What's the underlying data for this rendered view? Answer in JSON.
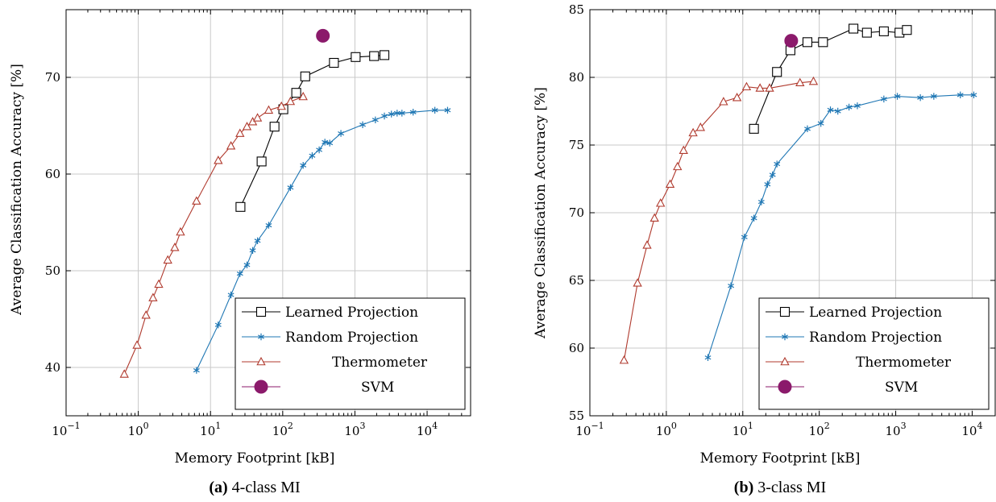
{
  "chart_data": [
    {
      "type": "line",
      "caption_tag": "(a)",
      "caption_text": "4-class MI",
      "xlabel": "Memory Footprint [kB]",
      "ylabel": "Average Classification Accuracy [%]",
      "xscale": "log",
      "xlim": [
        0.1,
        40000
      ],
      "ylim": [
        35,
        77
      ],
      "xticks": [
        0.1,
        1,
        10,
        100,
        1000,
        10000
      ],
      "xtick_labels": [
        [
          "10",
          "−1"
        ],
        [
          "10",
          "0"
        ],
        [
          "10",
          "1"
        ],
        [
          "10",
          "2"
        ],
        [
          "10",
          "3"
        ],
        [
          "10",
          "4"
        ]
      ],
      "yticks": [
        40,
        50,
        60,
        70
      ],
      "ytick_labels": [
        "40",
        "50",
        "60",
        "70"
      ],
      "grid": true,
      "legend_position": "bottom-right",
      "series": [
        {
          "name": "Learned Projection",
          "color": "#000000",
          "marker": "square",
          "x": [
            26,
            51,
            77,
            102,
            154,
            205,
            512,
            1024,
            1843,
            2560
          ],
          "y": [
            56.6,
            61.3,
            64.9,
            66.7,
            68.4,
            70.1,
            71.5,
            72.1,
            72.2,
            72.3
          ]
        },
        {
          "name": "Random Projection",
          "color": "#1f77b4",
          "marker": "star",
          "x": [
            6.4,
            12.8,
            19.2,
            25.6,
            32,
            38.4,
            44.8,
            64,
            128,
            192,
            256,
            320,
            384,
            448,
            640,
            1280,
            1920,
            2560,
            3200,
            3840,
            4480,
            6400,
            12800,
            19200
          ],
          "y": [
            39.7,
            44.4,
            47.5,
            49.7,
            50.6,
            52.1,
            53.1,
            54.7,
            58.6,
            60.9,
            61.9,
            62.5,
            63.3,
            63.2,
            64.2,
            65.1,
            65.6,
            66.0,
            66.2,
            66.3,
            66.3,
            66.4,
            66.6,
            66.6
          ]
        },
        {
          "name": "Thermometer",
          "color": "#b03a2e",
          "marker": "triangle",
          "x": [
            0.64,
            0.96,
            1.28,
            1.6,
            1.92,
            2.56,
            3.2,
            3.84,
            6.4,
            12.8,
            19.2,
            25.6,
            32,
            38.4,
            44.8,
            64,
            96,
            128,
            192
          ],
          "y": [
            39.3,
            42.3,
            45.4,
            47.2,
            48.6,
            51.1,
            52.4,
            54.0,
            57.2,
            61.4,
            62.9,
            64.2,
            64.9,
            65.4,
            65.8,
            66.6,
            67.0,
            67.5,
            68.0
          ]
        },
        {
          "name": "SVM",
          "color": "#8b1a6b",
          "marker": "circle",
          "x": [
            360
          ],
          "y": [
            74.3
          ]
        }
      ]
    },
    {
      "type": "line",
      "caption_tag": "(b)",
      "caption_text": "3-class MI",
      "xlabel": "Memory Footprint [kB]",
      "ylabel": "Average Classification Accuracy [%]",
      "xscale": "log",
      "xlim": [
        0.1,
        20000
      ],
      "ylim": [
        55,
        85
      ],
      "xticks": [
        0.1,
        1,
        10,
        100,
        1000,
        10000
      ],
      "xtick_labels": [
        [
          "10",
          "−1"
        ],
        [
          "10",
          "0"
        ],
        [
          "10",
          "1"
        ],
        [
          "10",
          "2"
        ],
        [
          "10",
          "3"
        ],
        [
          "10",
          "4"
        ]
      ],
      "yticks": [
        55,
        60,
        65,
        70,
        75,
        80,
        85
      ],
      "ytick_labels": [
        "55",
        "60",
        "65",
        "70",
        "75",
        "80",
        "85"
      ],
      "grid": true,
      "legend_position": "bottom-right",
      "series": [
        {
          "name": "Learned Projection",
          "color": "#000000",
          "marker": "square",
          "x": [
            14,
            28,
            42,
            70,
            112,
            280,
            420,
            700,
            1120,
            1400
          ],
          "y": [
            76.2,
            80.4,
            82.0,
            82.6,
            82.6,
            83.6,
            83.3,
            83.4,
            83.3,
            83.5
          ]
        },
        {
          "name": "Random Projection",
          "color": "#1f77b4",
          "marker": "star",
          "x": [
            3.5,
            7,
            10.5,
            14,
            17.5,
            21,
            24.5,
            28,
            70,
            105,
            140,
            175,
            245,
            315,
            700,
            1050,
            2100,
            3150,
            7000,
            10500
          ],
          "y": [
            59.3,
            64.6,
            68.2,
            69.6,
            70.8,
            72.1,
            72.8,
            73.6,
            76.2,
            76.6,
            77.6,
            77.5,
            77.8,
            77.9,
            78.4,
            78.6,
            78.5,
            78.6,
            78.7,
            78.7
          ]
        },
        {
          "name": "Thermometer",
          "color": "#b03a2e",
          "marker": "triangle",
          "x": [
            0.28,
            0.42,
            0.56,
            0.7,
            0.84,
            1.12,
            1.4,
            1.68,
            2.24,
            2.8,
            5.6,
            8.4,
            11.2,
            16.8,
            22.4,
            56,
            84
          ],
          "y": [
            59.1,
            64.8,
            67.6,
            69.6,
            70.7,
            72.1,
            73.4,
            74.6,
            75.9,
            76.3,
            78.2,
            78.5,
            79.3,
            79.2,
            79.2,
            79.6,
            79.7
          ]
        },
        {
          "name": "SVM",
          "color": "#8b1a6b",
          "marker": "circle",
          "x": [
            43
          ],
          "y": [
            82.7
          ]
        }
      ]
    }
  ]
}
